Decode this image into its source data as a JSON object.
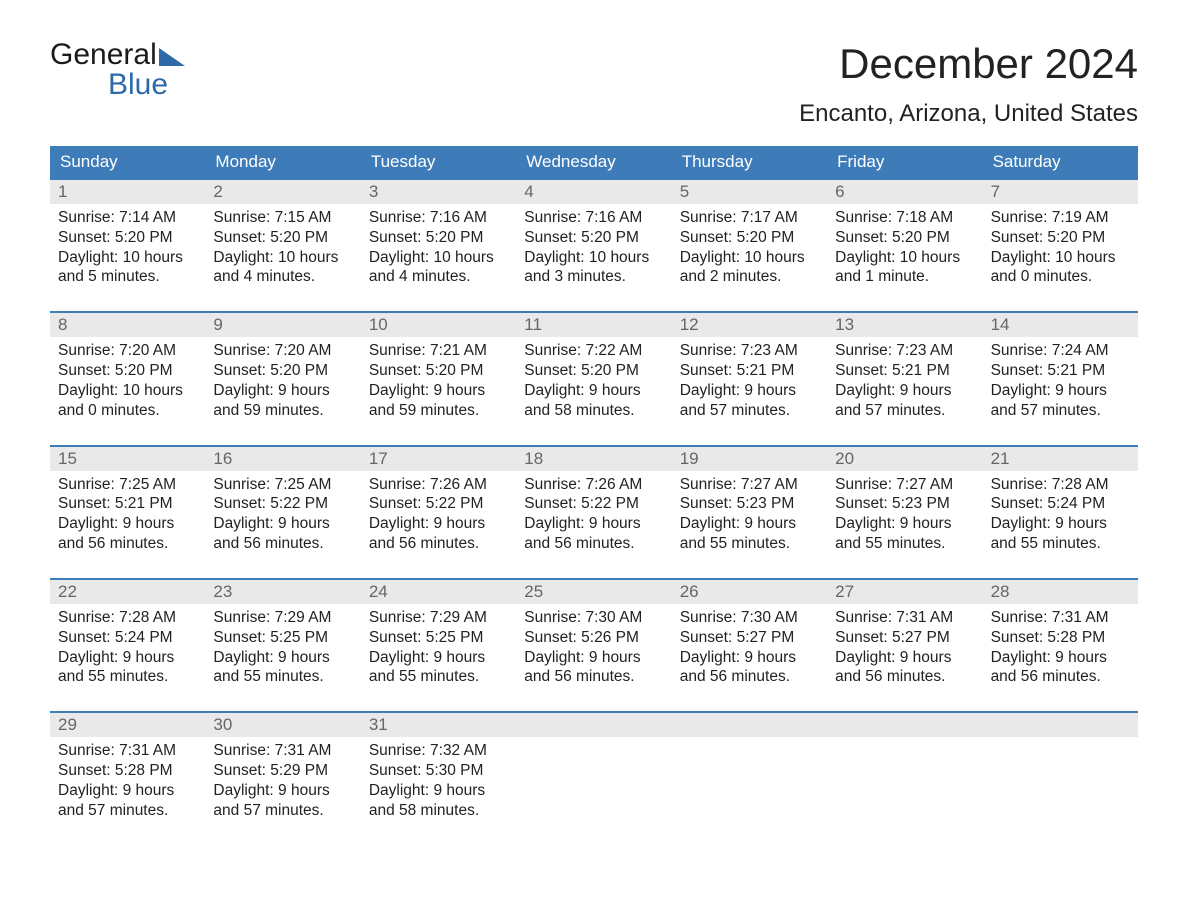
{
  "logo": {
    "text_top": "General",
    "text_bottom": "Blue",
    "accent_color": "#2f6aa8"
  },
  "title": "December 2024",
  "location": "Encanto, Arizona, United States",
  "colors": {
    "header_bg": "#3d7cb8",
    "header_text": "#ffffff",
    "week_border": "#3d7cb8",
    "daynum_bg": "#e9e9e9",
    "daynum_text": "#666666",
    "body_text": "#222222",
    "page_bg": "#ffffff"
  },
  "typography": {
    "title_fontsize": 42,
    "location_fontsize": 24,
    "header_fontsize": 17,
    "daynum_fontsize": 17,
    "body_fontsize": 15.5,
    "font_family": "Arial"
  },
  "day_names": [
    "Sunday",
    "Monday",
    "Tuesday",
    "Wednesday",
    "Thursday",
    "Friday",
    "Saturday"
  ],
  "weeks": [
    [
      {
        "n": "1",
        "sunrise": "7:14 AM",
        "sunset": "5:20 PM",
        "dl1": "10 hours",
        "dl2": "and 5 minutes."
      },
      {
        "n": "2",
        "sunrise": "7:15 AM",
        "sunset": "5:20 PM",
        "dl1": "10 hours",
        "dl2": "and 4 minutes."
      },
      {
        "n": "3",
        "sunrise": "7:16 AM",
        "sunset": "5:20 PM",
        "dl1": "10 hours",
        "dl2": "and 4 minutes."
      },
      {
        "n": "4",
        "sunrise": "7:16 AM",
        "sunset": "5:20 PM",
        "dl1": "10 hours",
        "dl2": "and 3 minutes."
      },
      {
        "n": "5",
        "sunrise": "7:17 AM",
        "sunset": "5:20 PM",
        "dl1": "10 hours",
        "dl2": "and 2 minutes."
      },
      {
        "n": "6",
        "sunrise": "7:18 AM",
        "sunset": "5:20 PM",
        "dl1": "10 hours",
        "dl2": "and 1 minute."
      },
      {
        "n": "7",
        "sunrise": "7:19 AM",
        "sunset": "5:20 PM",
        "dl1": "10 hours",
        "dl2": "and 0 minutes."
      }
    ],
    [
      {
        "n": "8",
        "sunrise": "7:20 AM",
        "sunset": "5:20 PM",
        "dl1": "10 hours",
        "dl2": "and 0 minutes."
      },
      {
        "n": "9",
        "sunrise": "7:20 AM",
        "sunset": "5:20 PM",
        "dl1": "9 hours",
        "dl2": "and 59 minutes."
      },
      {
        "n": "10",
        "sunrise": "7:21 AM",
        "sunset": "5:20 PM",
        "dl1": "9 hours",
        "dl2": "and 59 minutes."
      },
      {
        "n": "11",
        "sunrise": "7:22 AM",
        "sunset": "5:20 PM",
        "dl1": "9 hours",
        "dl2": "and 58 minutes."
      },
      {
        "n": "12",
        "sunrise": "7:23 AM",
        "sunset": "5:21 PM",
        "dl1": "9 hours",
        "dl2": "and 57 minutes."
      },
      {
        "n": "13",
        "sunrise": "7:23 AM",
        "sunset": "5:21 PM",
        "dl1": "9 hours",
        "dl2": "and 57 minutes."
      },
      {
        "n": "14",
        "sunrise": "7:24 AM",
        "sunset": "5:21 PM",
        "dl1": "9 hours",
        "dl2": "and 57 minutes."
      }
    ],
    [
      {
        "n": "15",
        "sunrise": "7:25 AM",
        "sunset": "5:21 PM",
        "dl1": "9 hours",
        "dl2": "and 56 minutes."
      },
      {
        "n": "16",
        "sunrise": "7:25 AM",
        "sunset": "5:22 PM",
        "dl1": "9 hours",
        "dl2": "and 56 minutes."
      },
      {
        "n": "17",
        "sunrise": "7:26 AM",
        "sunset": "5:22 PM",
        "dl1": "9 hours",
        "dl2": "and 56 minutes."
      },
      {
        "n": "18",
        "sunrise": "7:26 AM",
        "sunset": "5:22 PM",
        "dl1": "9 hours",
        "dl2": "and 56 minutes."
      },
      {
        "n": "19",
        "sunrise": "7:27 AM",
        "sunset": "5:23 PM",
        "dl1": "9 hours",
        "dl2": "and 55 minutes."
      },
      {
        "n": "20",
        "sunrise": "7:27 AM",
        "sunset": "5:23 PM",
        "dl1": "9 hours",
        "dl2": "and 55 minutes."
      },
      {
        "n": "21",
        "sunrise": "7:28 AM",
        "sunset": "5:24 PM",
        "dl1": "9 hours",
        "dl2": "and 55 minutes."
      }
    ],
    [
      {
        "n": "22",
        "sunrise": "7:28 AM",
        "sunset": "5:24 PM",
        "dl1": "9 hours",
        "dl2": "and 55 minutes."
      },
      {
        "n": "23",
        "sunrise": "7:29 AM",
        "sunset": "5:25 PM",
        "dl1": "9 hours",
        "dl2": "and 55 minutes."
      },
      {
        "n": "24",
        "sunrise": "7:29 AM",
        "sunset": "5:25 PM",
        "dl1": "9 hours",
        "dl2": "and 55 minutes."
      },
      {
        "n": "25",
        "sunrise": "7:30 AM",
        "sunset": "5:26 PM",
        "dl1": "9 hours",
        "dl2": "and 56 minutes."
      },
      {
        "n": "26",
        "sunrise": "7:30 AM",
        "sunset": "5:27 PM",
        "dl1": "9 hours",
        "dl2": "and 56 minutes."
      },
      {
        "n": "27",
        "sunrise": "7:31 AM",
        "sunset": "5:27 PM",
        "dl1": "9 hours",
        "dl2": "and 56 minutes."
      },
      {
        "n": "28",
        "sunrise": "7:31 AM",
        "sunset": "5:28 PM",
        "dl1": "9 hours",
        "dl2": "and 56 minutes."
      }
    ],
    [
      {
        "n": "29",
        "sunrise": "7:31 AM",
        "sunset": "5:28 PM",
        "dl1": "9 hours",
        "dl2": "and 57 minutes."
      },
      {
        "n": "30",
        "sunrise": "7:31 AM",
        "sunset": "5:29 PM",
        "dl1": "9 hours",
        "dl2": "and 57 minutes."
      },
      {
        "n": "31",
        "sunrise": "7:32 AM",
        "sunset": "5:30 PM",
        "dl1": "9 hours",
        "dl2": "and 58 minutes."
      },
      null,
      null,
      null,
      null
    ]
  ],
  "labels": {
    "sunrise_prefix": "Sunrise: ",
    "sunset_prefix": "Sunset: ",
    "daylight_prefix": "Daylight: "
  }
}
